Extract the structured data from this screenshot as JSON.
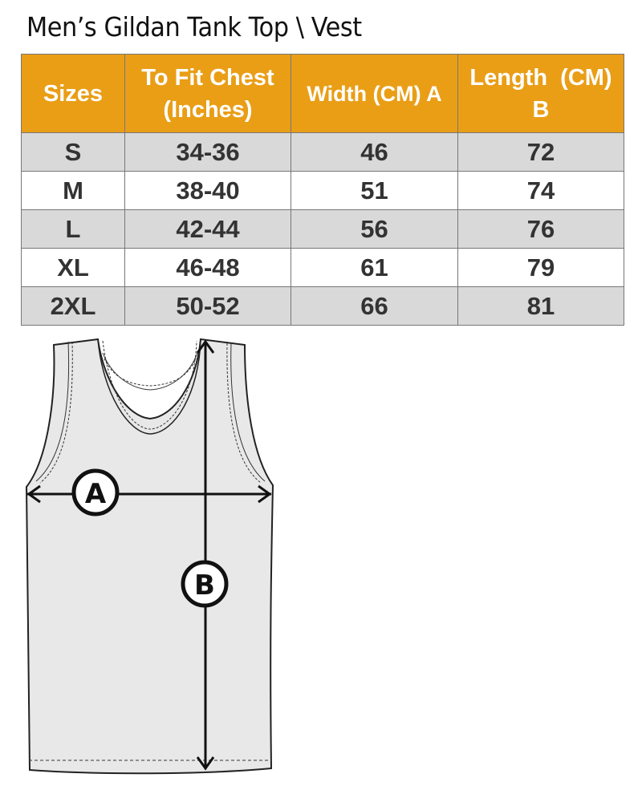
{
  "title": "Men’s Gildan Tank Top \\ Vest",
  "colors": {
    "header_bg": "#e99e16",
    "header_text": "#ffffff",
    "row_alt_bg": "#d9d9d9"
  },
  "table": {
    "headers": [
      "Sizes",
      "To Fit Chest (Inches)",
      "Width (CM) A",
      "Length  (CM) B"
    ],
    "rows": [
      [
        "S",
        "34-36",
        "46",
        "72"
      ],
      [
        "M",
        "38-40",
        "51",
        "74"
      ],
      [
        "L",
        "42-44",
        "56",
        "76"
      ],
      [
        "XL",
        "46-48",
        "61",
        "79"
      ],
      [
        "2XL",
        "50-52",
        "66",
        "81"
      ]
    ]
  },
  "diagram": {
    "label_a": "A",
    "label_b": "B"
  }
}
